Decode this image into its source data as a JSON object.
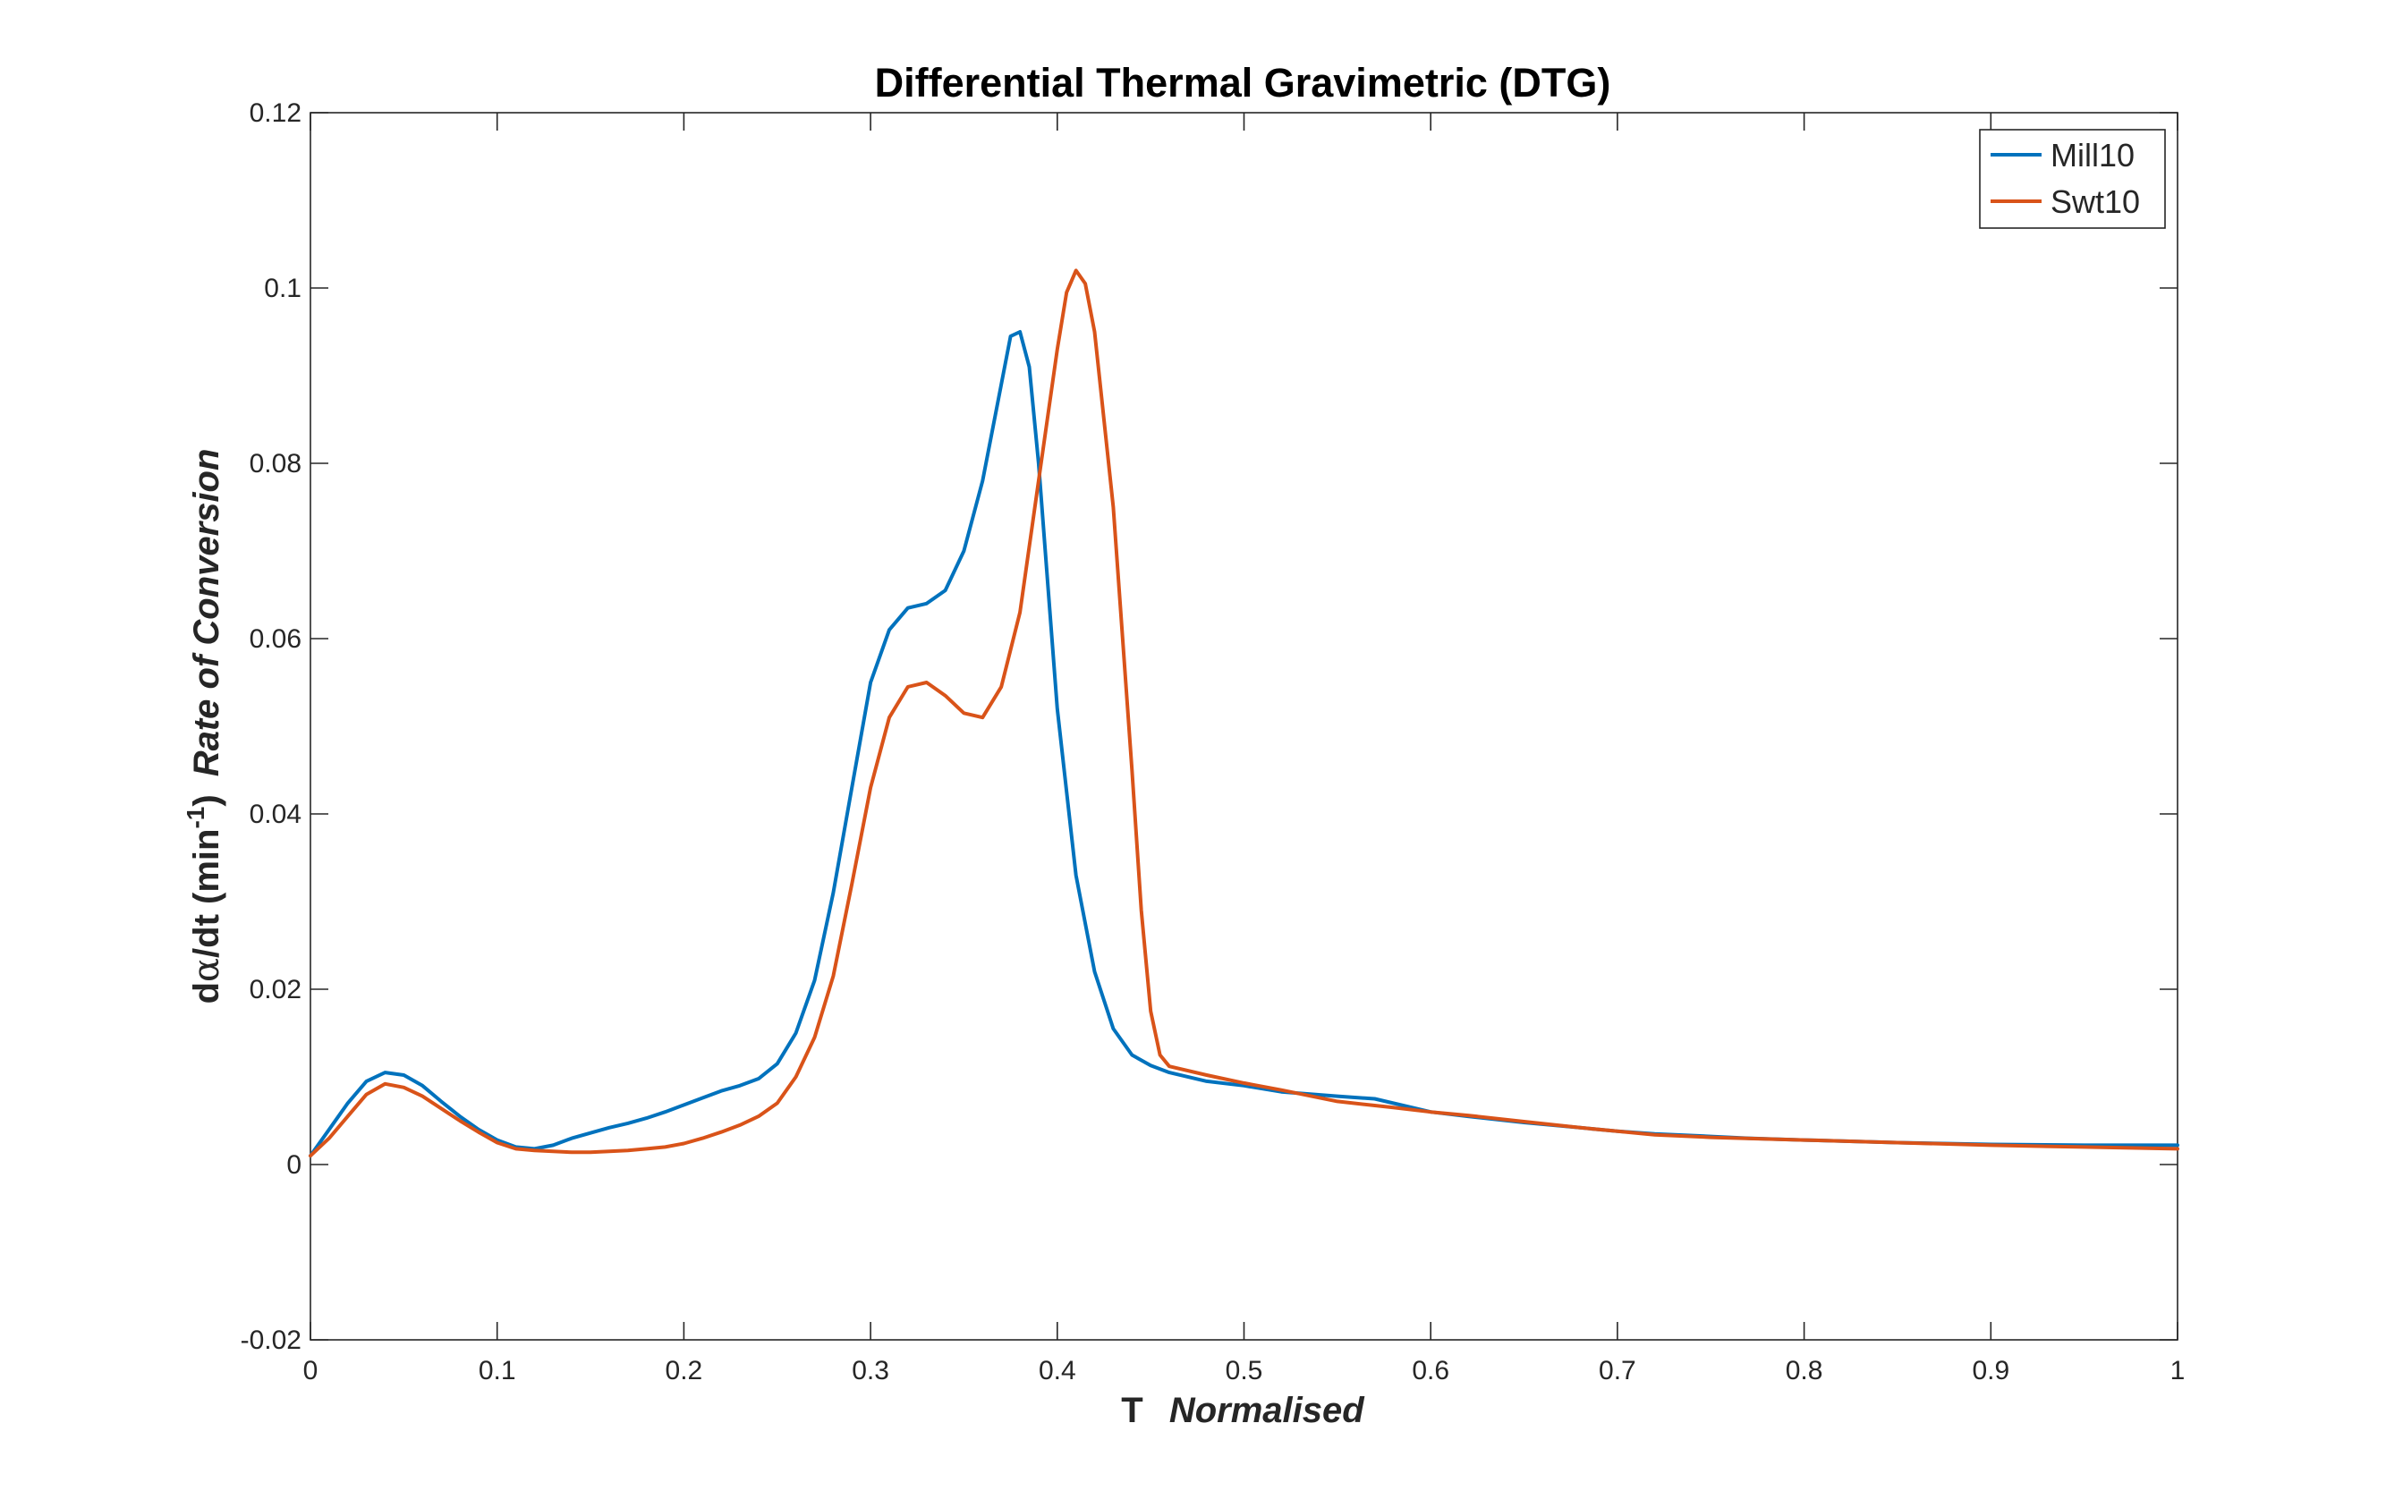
{
  "chart_data": {
    "type": "line",
    "title": "Differential Thermal Gravimetric (DTG)",
    "xlabel": {
      "main": "T",
      "italic": "Normalised"
    },
    "ylabel": {
      "prefix": "d",
      "alpha": "α",
      "middle": "/dt (min",
      "superscript": "-1",
      "suffix": ")",
      "italic": "Rate of Conversion"
    },
    "xlim": [
      0,
      1
    ],
    "ylim": [
      -0.02,
      0.12
    ],
    "xticks": [
      0,
      0.1,
      0.2,
      0.3,
      0.4,
      0.5,
      0.6,
      0.7,
      0.8,
      0.9,
      1
    ],
    "xtick_labels": [
      "0",
      "0.1",
      "0.2",
      "0.3",
      "0.4",
      "0.5",
      "0.6",
      "0.7",
      "0.8",
      "0.9",
      "1"
    ],
    "yticks": [
      -0.02,
      0,
      0.02,
      0.04,
      0.06,
      0.08,
      0.1,
      0.12
    ],
    "ytick_labels": [
      "-0.02",
      "0",
      "0.02",
      "0.04",
      "0.06",
      "0.08",
      "0.1",
      "0.12"
    ],
    "grid": false,
    "legend_position": "top-right",
    "series": [
      {
        "name": "Mill10",
        "color": "#0072BD",
        "x": [
          0,
          0.01,
          0.02,
          0.03,
          0.04,
          0.05,
          0.06,
          0.07,
          0.08,
          0.09,
          0.1,
          0.11,
          0.12,
          0.13,
          0.14,
          0.15,
          0.16,
          0.17,
          0.18,
          0.19,
          0.2,
          0.21,
          0.22,
          0.23,
          0.24,
          0.25,
          0.26,
          0.27,
          0.28,
          0.29,
          0.3,
          0.31,
          0.32,
          0.33,
          0.34,
          0.35,
          0.36,
          0.37,
          0.375,
          0.38,
          0.385,
          0.39,
          0.4,
          0.41,
          0.42,
          0.43,
          0.44,
          0.45,
          0.46,
          0.48,
          0.5,
          0.52,
          0.55,
          0.57,
          0.6,
          0.62,
          0.65,
          0.68,
          0.7,
          0.72,
          0.75,
          0.77,
          0.8,
          0.85,
          0.9,
          0.95,
          1.0
        ],
        "y": [
          0.001,
          0.004,
          0.007,
          0.0095,
          0.0105,
          0.0102,
          0.009,
          0.0072,
          0.0055,
          0.004,
          0.0028,
          0.002,
          0.0018,
          0.0022,
          0.003,
          0.0036,
          0.0042,
          0.0047,
          0.0053,
          0.006,
          0.0068,
          0.0076,
          0.0084,
          0.009,
          0.0098,
          0.0115,
          0.015,
          0.021,
          0.031,
          0.043,
          0.055,
          0.061,
          0.0635,
          0.064,
          0.0655,
          0.07,
          0.078,
          0.089,
          0.0945,
          0.095,
          0.091,
          0.08,
          0.052,
          0.033,
          0.022,
          0.0155,
          0.0125,
          0.0113,
          0.0105,
          0.0095,
          0.009,
          0.0083,
          0.0078,
          0.0075,
          0.006,
          0.0055,
          0.0048,
          0.0042,
          0.0038,
          0.0035,
          0.0032,
          0.003,
          0.0028,
          0.0025,
          0.0023,
          0.0022,
          0.0022
        ]
      },
      {
        "name": "Swt10",
        "color": "#D95319",
        "x": [
          0,
          0.01,
          0.02,
          0.03,
          0.04,
          0.05,
          0.06,
          0.07,
          0.08,
          0.09,
          0.1,
          0.11,
          0.12,
          0.13,
          0.14,
          0.15,
          0.16,
          0.17,
          0.18,
          0.19,
          0.2,
          0.21,
          0.22,
          0.23,
          0.24,
          0.25,
          0.26,
          0.27,
          0.28,
          0.29,
          0.3,
          0.31,
          0.32,
          0.33,
          0.34,
          0.35,
          0.36,
          0.37,
          0.38,
          0.39,
          0.4,
          0.405,
          0.41,
          0.415,
          0.42,
          0.43,
          0.44,
          0.445,
          0.45,
          0.455,
          0.46,
          0.48,
          0.5,
          0.52,
          0.55,
          0.58,
          0.6,
          0.62,
          0.65,
          0.68,
          0.7,
          0.72,
          0.75,
          0.8,
          0.85,
          0.9,
          0.95,
          1.0
        ],
        "y": [
          0.001,
          0.003,
          0.0055,
          0.008,
          0.0092,
          0.0088,
          0.0078,
          0.0064,
          0.005,
          0.0037,
          0.0025,
          0.0018,
          0.0016,
          0.0015,
          0.0014,
          0.0014,
          0.0015,
          0.0016,
          0.0018,
          0.002,
          0.0024,
          0.003,
          0.0037,
          0.0045,
          0.0055,
          0.007,
          0.01,
          0.0145,
          0.0215,
          0.032,
          0.043,
          0.051,
          0.0545,
          0.055,
          0.0535,
          0.0515,
          0.051,
          0.0545,
          0.063,
          0.078,
          0.093,
          0.0995,
          0.102,
          0.1005,
          0.095,
          0.075,
          0.045,
          0.029,
          0.0175,
          0.0125,
          0.0112,
          0.0102,
          0.0093,
          0.0085,
          0.0072,
          0.0065,
          0.006,
          0.0056,
          0.0049,
          0.0042,
          0.0038,
          0.0034,
          0.0031,
          0.0028,
          0.0025,
          0.0022,
          0.002,
          0.0018
        ]
      }
    ]
  }
}
